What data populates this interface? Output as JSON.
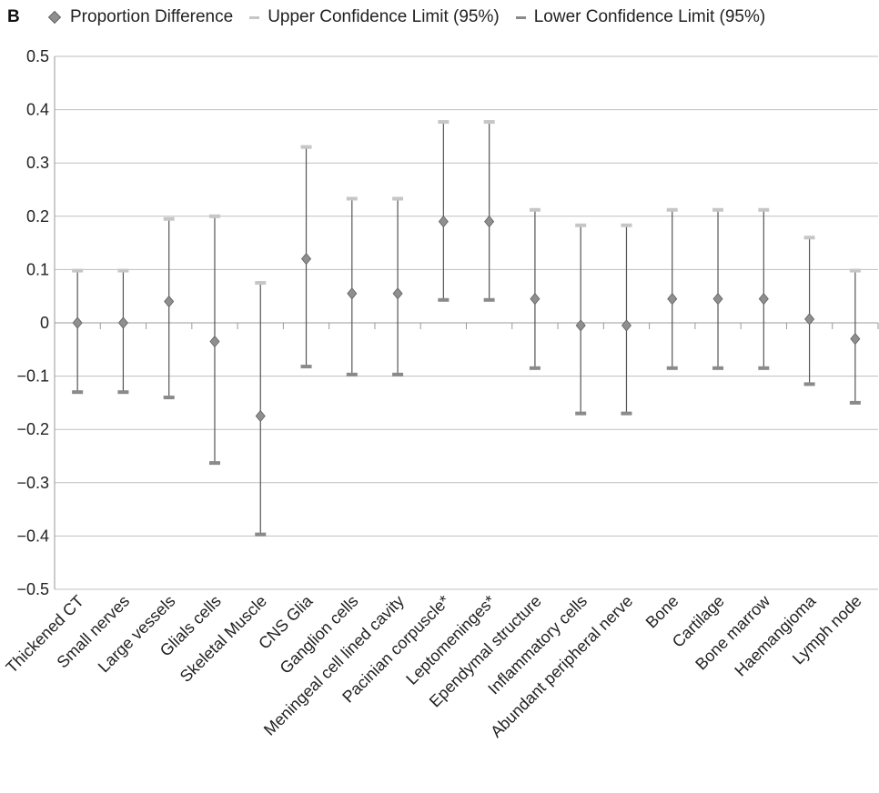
{
  "panel_label": "B",
  "legend": [
    {
      "label": "Proportion Difference",
      "marker": "diamond",
      "color": "#8f8f8f"
    },
    {
      "label": "Upper Confidence Limit (95%)",
      "marker": "dash",
      "color": "#c6c6c6"
    },
    {
      "label": "Lower Confidence Limit (95%)",
      "marker": "dash",
      "color": "#8a8a8a"
    }
  ],
  "chart_data": {
    "type": "scatter",
    "title": "",
    "xlabel": "",
    "ylabel": "",
    "ylim": [
      -0.5,
      0.5
    ],
    "yticks": [
      "0.5",
      "0.4",
      "0.3",
      "0.2",
      "0.1",
      "0",
      "−0.1",
      "−0.2",
      "−0.3",
      "−0.4",
      "−0.5"
    ],
    "grid": true,
    "legend_position": "top",
    "categories": [
      "Thickened CT",
      "Small nerves",
      "Large vessels",
      "Glials cells",
      "Skeletal  Muscle",
      "CNS Glia",
      "Ganglion cells",
      "Meningeal cell lined cavity",
      "Pacinian corpuscle*",
      "Leptomeninges*",
      "Ependymal structure",
      "Inflammatory cells",
      "Abundant peripheral nerve",
      "Bone",
      "Cartilage",
      "Bone marrow",
      "Haemangioma",
      "Lymph node"
    ],
    "series": [
      {
        "name": "Proportion Difference",
        "values": [
          0.0,
          0.0,
          0.04,
          -0.035,
          -0.175,
          0.12,
          0.055,
          0.055,
          0.19,
          0.19,
          0.045,
          -0.005,
          -0.005,
          0.045,
          0.045,
          0.045,
          0.007,
          -0.03
        ]
      },
      {
        "name": "Upper Confidence Limit (95%)",
        "values": [
          0.098,
          0.098,
          0.195,
          0.2,
          0.075,
          0.33,
          0.233,
          0.233,
          0.377,
          0.377,
          0.212,
          0.183,
          0.183,
          0.212,
          0.212,
          0.212,
          0.16,
          0.098
        ]
      },
      {
        "name": "Lower Confidence Limit (95%)",
        "values": [
          -0.13,
          -0.13,
          -0.14,
          -0.263,
          -0.397,
          -0.082,
          -0.097,
          -0.097,
          0.043,
          0.043,
          -0.085,
          -0.17,
          -0.17,
          -0.085,
          -0.085,
          -0.085,
          -0.115,
          -0.15
        ]
      }
    ],
    "colors": {
      "point": "#8f8f8f",
      "point_stroke": "#5f5f5f",
      "whisker": "#555555",
      "upper_cap": "#c6c6c6",
      "lower_cap": "#8a8a8a",
      "grid": "#bfbfbf",
      "axis": "#9a9a9a",
      "text": "#222222"
    }
  }
}
